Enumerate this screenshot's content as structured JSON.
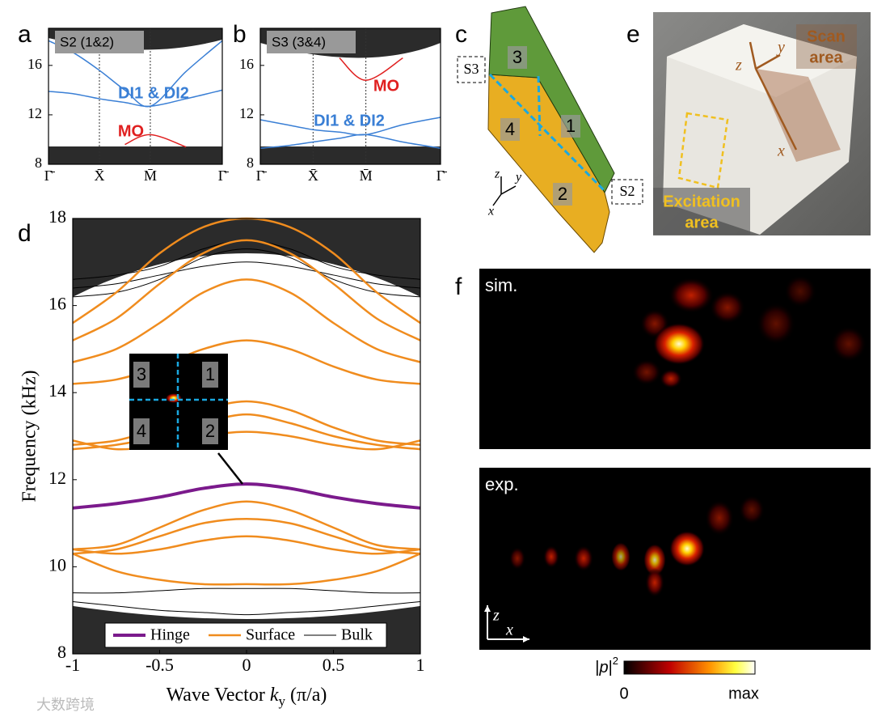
{
  "panel_labels": [
    "a",
    "b",
    "c",
    "d",
    "e",
    "f"
  ],
  "chart_data": [
    {
      "type": "line",
      "title": "S2 (1&2)",
      "x": [
        0,
        0.5,
        1,
        1.5,
        2,
        2.7,
        3.414
      ],
      "xlim": [
        0,
        3.414
      ],
      "ylim": [
        8,
        19
      ],
      "xticks": [
        {
          "value": 0,
          "label": "Γ̄"
        },
        {
          "value": 1,
          "label": "X̄"
        },
        {
          "value": 2,
          "label": "M̄"
        },
        {
          "value": 3.414,
          "label": "Γ̄"
        }
      ],
      "yticks": [
        8,
        12,
        16
      ],
      "series": [
        {
          "color": "#3a7fd5",
          "values": [
            18,
            17,
            15.6,
            14,
            12.7,
            15.5,
            18
          ]
        },
        {
          "color": "#3a7fd5",
          "values": [
            13.9,
            13.7,
            13.3,
            13.0,
            12.7,
            13.3,
            14
          ]
        },
        {
          "color": "#e02020",
          "values": [
            null,
            null,
            null,
            9.6,
            10.4,
            9.4,
            null
          ]
        }
      ],
      "annotations": [
        {
          "text": "DI1 & DI2",
          "color": "#3a7fd5"
        },
        {
          "text": "MO",
          "color": "#e02020"
        }
      ]
    },
    {
      "type": "line",
      "title": "S3 (3&4)",
      "x": [
        0,
        0.5,
        1,
        1.5,
        2,
        2.7,
        3.414
      ],
      "xlim": [
        0,
        3.414
      ],
      "ylim": [
        8,
        19
      ],
      "xticks": [
        {
          "value": 0,
          "label": "Γ̄"
        },
        {
          "value": 1,
          "label": "X̄"
        },
        {
          "value": 2,
          "label": "M̄"
        },
        {
          "value": 3.414,
          "label": "Γ̄"
        }
      ],
      "yticks": [
        8,
        12,
        16
      ],
      "series": [
        {
          "color": "#3a7fd5",
          "values": [
            11.6,
            11.2,
            10.8,
            10.6,
            10.4,
            11.2,
            11.8
          ]
        },
        {
          "color": "#3a7fd5",
          "values": [
            9.3,
            9.5,
            9.8,
            10.1,
            10.4,
            9.8,
            9.3
          ]
        },
        {
          "color": "#e02020",
          "values": [
            null,
            null,
            null,
            16.6,
            14.8,
            16.6,
            null
          ]
        }
      ],
      "annotations": [
        {
          "text": "MO",
          "color": "#e02020"
        },
        {
          "text": "DI1 & DI2",
          "color": "#3a7fd5"
        }
      ]
    },
    {
      "type": "line",
      "ylabel": "Frequency (kHz)",
      "xlabel_parts": [
        "Wave Vector ",
        "k",
        "y",
        " (π/a)"
      ],
      "x": [
        -1,
        -0.75,
        -0.5,
        -0.25,
        0,
        0.25,
        0.5,
        0.75,
        1
      ],
      "xlim": [
        -1,
        1
      ],
      "ylim": [
        8,
        18
      ],
      "xticks": [
        -1,
        -0.5,
        0,
        0.5,
        1
      ],
      "yticks": [
        8,
        10,
        12,
        14,
        16,
        18
      ],
      "legend": "lower center",
      "series": [
        {
          "name": "Hinge",
          "color": "#7b1a8c",
          "width": 4,
          "curves": [
            [
              11.35,
              11.45,
              11.6,
              11.8,
              11.9,
              11.8,
              11.6,
              11.45,
              11.35
            ]
          ]
        },
        {
          "name": "Surface",
          "color": "#f08c1e",
          "width": 2.5,
          "curves": [
            [
              15.6,
              16.3,
              17.2,
              17.8,
              18,
              17.8,
              17.2,
              16.3,
              15.6
            ],
            [
              15.2,
              15.7,
              16.5,
              17.2,
              17.5,
              17.2,
              16.5,
              15.7,
              15.2
            ],
            [
              14.7,
              15.0,
              15.6,
              16.3,
              16.6,
              16.3,
              15.6,
              15.0,
              14.7
            ],
            [
              14.2,
              14.3,
              14.6,
              15.0,
              15.2,
              15.0,
              14.6,
              14.3,
              14.2
            ],
            [
              12.8,
              12.9,
              13.2,
              13.6,
              13.8,
              13.6,
              13.2,
              12.9,
              12.8
            ],
            [
              12.7,
              12.8,
              13.0,
              13.3,
              13.5,
              13.3,
              13.0,
              12.8,
              12.7
            ],
            [
              12.9,
              12.7,
              12.8,
              13.0,
              13.1,
              13.0,
              12.8,
              12.7,
              12.9
            ],
            [
              10.4,
              10.5,
              10.9,
              11.3,
              11.5,
              11.3,
              10.9,
              10.5,
              10.4
            ],
            [
              10.3,
              10.4,
              10.7,
              11.0,
              11.1,
              11.0,
              10.7,
              10.4,
              10.3
            ],
            [
              10.4,
              10.3,
              10.4,
              10.6,
              10.7,
              10.6,
              10.4,
              10.3,
              10.4
            ],
            [
              10.3,
              9.9,
              9.7,
              9.6,
              9.6,
              9.6,
              9.7,
              9.9,
              10.3
            ]
          ]
        },
        {
          "name": "Bulk",
          "color": "#000000",
          "width": 1,
          "curves": [
            [
              16.2,
              16.3,
              16.6,
              17.1,
              17.3,
              17.1,
              16.6,
              16.3,
              16.2
            ],
            [
              16.4,
              16.5,
              16.7,
              16.9,
              17.0,
              16.9,
              16.7,
              16.5,
              16.4
            ],
            [
              16.6,
              16.7,
              16.9,
              17.3,
              17.5,
              17.3,
              16.9,
              16.7,
              16.6
            ],
            [
              9.4,
              9.4,
              9.45,
              9.5,
              9.5,
              9.5,
              9.45,
              9.4,
              9.4
            ],
            [
              9.2,
              9.1,
              9.0,
              8.95,
              8.9,
              8.95,
              9.0,
              9.1,
              9.2
            ]
          ]
        }
      ]
    }
  ],
  "inset": {
    "labels": [
      "3",
      "1",
      "4",
      "2"
    ]
  },
  "panel_c": {
    "surfaces": [
      "3",
      "4",
      "1",
      "2"
    ],
    "sides": [
      "S3",
      "S2"
    ],
    "axes": [
      "z",
      "y",
      "x"
    ]
  },
  "panel_e": {
    "axes": [
      "z",
      "y",
      "x"
    ],
    "scan_area": [
      "Scan",
      "area"
    ],
    "excitation_area": [
      "Excitation",
      "area"
    ]
  },
  "panel_f": {
    "maps": [
      "sim.",
      "exp."
    ],
    "axes": [
      "z",
      "x"
    ],
    "colorbar": {
      "label_parts": [
        "|",
        "p",
        "|",
        "2"
      ],
      "min": 0,
      "max": "max"
    }
  },
  "watermark": "大数跨境"
}
